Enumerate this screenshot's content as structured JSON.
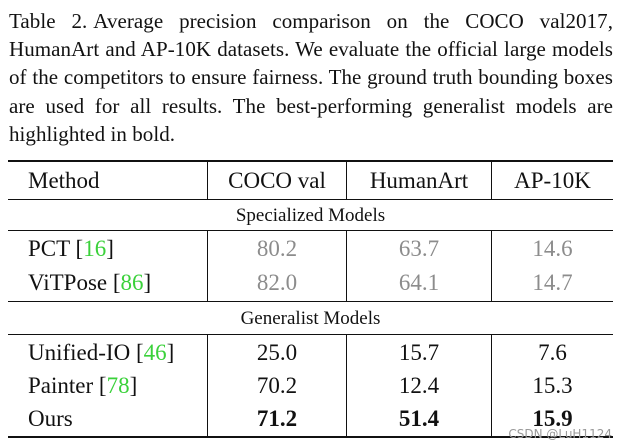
{
  "caption": {
    "label": "Table 2.",
    "text": "Average precision comparison on the COCO val2017, HumanArt and AP-10K datasets. We evaluate the official large models of the competitors to ensure fairness. The ground truth bounding boxes are used for all results. The best-performing generalist models are highlighted in bold."
  },
  "table": {
    "headers": [
      "Method",
      "COCO val",
      "HumanArt",
      "AP-10K"
    ],
    "sections": [
      {
        "title": "Specialized Models",
        "rows": [
          {
            "method": "PCT",
            "cite": "16",
            "values": [
              "80.2",
              "63.7",
              "14.6"
            ]
          },
          {
            "method": "ViTPose",
            "cite": "86",
            "values": [
              "82.0",
              "64.1",
              "14.7"
            ]
          }
        ]
      },
      {
        "title": "Generalist Models",
        "rows": [
          {
            "method": "Unified-IO",
            "cite": "46",
            "values": [
              "25.0",
              "15.7",
              "7.6"
            ]
          },
          {
            "method": "Painter",
            "cite": "78",
            "values": [
              "70.2",
              "12.4",
              "15.3"
            ]
          },
          {
            "method": "Ours",
            "cite": "",
            "values": [
              "71.2",
              "51.4",
              "15.9"
            ]
          }
        ]
      }
    ]
  },
  "colors": {
    "citation": "#3ad13a",
    "specialized_values": "#8c8c8c"
  },
  "watermark": "CSDN @LuH1124"
}
